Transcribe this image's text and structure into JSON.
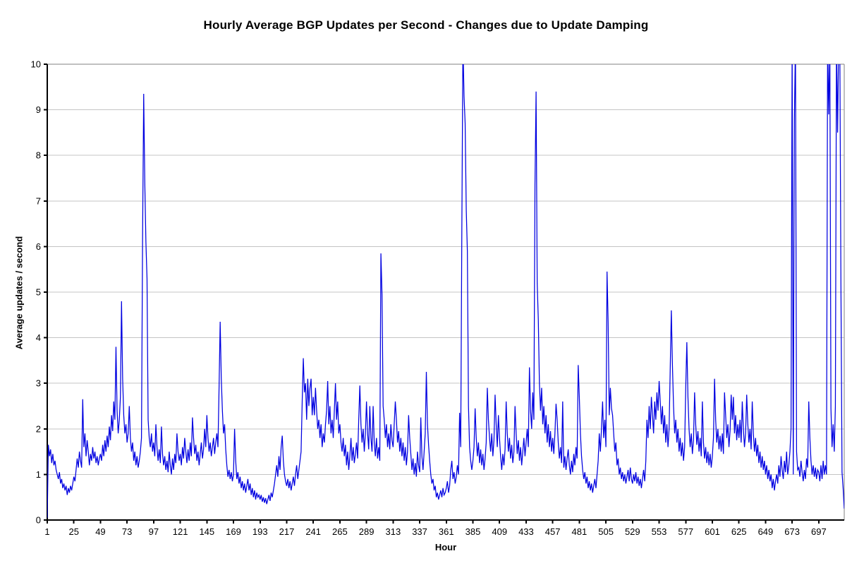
{
  "chart_data": {
    "type": "line",
    "title": "Hourly Average BGP Updates per Second - Changes due to Update Damping",
    "xlabel": "Hour",
    "ylabel": "Average updates / second",
    "xlim": [
      1,
      720
    ],
    "ylim": [
      0,
      10
    ],
    "grid": "horizontal",
    "legend": "none",
    "x_ticks": [
      1,
      25,
      49,
      73,
      97,
      121,
      145,
      169,
      193,
      217,
      241,
      265,
      289,
      313,
      337,
      361,
      385,
      409,
      433,
      457,
      481,
      505,
      529,
      553,
      577,
      601,
      625,
      649,
      673,
      697
    ],
    "y_ticks": [
      0,
      1,
      2,
      3,
      4,
      5,
      6,
      7,
      8,
      9,
      10
    ],
    "line_color": "#0000E0",
    "grid_color": "#C4C4C4",
    "plot_border_color": "#808080",
    "axis_color": "#000000",
    "values_above_ymax_are_clipped": true,
    "series": [
      {
        "name": "Hourly average BGP updates per second",
        "x_start_hour": 1,
        "x_step_hours": 1,
        "values": [
          0.05,
          1.65,
          1.4,
          1.55,
          1.25,
          1.45,
          1.2,
          1.3,
          1.1,
          1.0,
          0.9,
          1.05,
          0.8,
          0.9,
          0.7,
          0.8,
          0.65,
          0.75,
          0.55,
          0.7,
          0.6,
          0.75,
          0.65,
          0.8,
          0.95,
          0.85,
          1.1,
          1.35,
          1.15,
          1.5,
          1.3,
          1.15,
          2.65,
          1.6,
          1.9,
          1.4,
          1.75,
          1.5,
          1.2,
          1.45,
          1.3,
          1.6,
          1.35,
          1.5,
          1.25,
          1.4,
          1.2,
          1.35,
          1.45,
          1.3,
          1.65,
          1.4,
          1.75,
          1.5,
          1.85,
          1.6,
          2.05,
          1.75,
          2.3,
          1.95,
          2.6,
          2.2,
          3.8,
          2.4,
          1.9,
          2.2,
          2.7,
          4.8,
          3.1,
          2.3,
          1.9,
          2.1,
          1.7,
          1.9,
          2.5,
          1.8,
          1.5,
          1.7,
          1.3,
          1.5,
          1.2,
          1.4,
          1.15,
          1.3,
          1.5,
          1.8,
          6.2,
          9.35,
          7.4,
          6.1,
          5.3,
          2.2,
          1.8,
          1.6,
          1.9,
          1.5,
          1.7,
          1.4,
          2.1,
          1.6,
          1.3,
          1.55,
          1.25,
          2.05,
          1.45,
          1.2,
          1.4,
          1.1,
          1.3,
          1.05,
          1.5,
          1.2,
          1.0,
          1.35,
          1.1,
          1.45,
          1.25,
          1.9,
          1.5,
          1.3,
          1.45,
          1.2,
          1.6,
          1.35,
          1.8,
          1.5,
          1.25,
          1.55,
          1.3,
          1.7,
          1.4,
          2.25,
          1.8,
          1.45,
          1.65,
          1.3,
          1.5,
          1.2,
          1.45,
          1.7,
          1.35,
          1.55,
          2.0,
          1.6,
          2.3,
          1.8,
          1.5,
          1.7,
          1.4,
          1.6,
          1.8,
          1.45,
          1.7,
          1.9,
          1.6,
          2.9,
          4.35,
          3.1,
          2.4,
          1.9,
          2.1,
          1.55,
          1.2,
          0.95,
          1.1,
          0.9,
          1.05,
          0.85,
          1.0,
          2.0,
          1.3,
          0.9,
          1.05,
          0.8,
          0.95,
          0.7,
          0.85,
          0.65,
          0.8,
          0.6,
          0.75,
          0.9,
          0.65,
          0.8,
          0.55,
          0.7,
          0.5,
          0.65,
          0.45,
          0.6,
          0.5,
          0.55,
          0.45,
          0.55,
          0.4,
          0.5,
          0.38,
          0.48,
          0.35,
          0.45,
          0.55,
          0.42,
          0.6,
          0.5,
          0.65,
          0.8,
          1.0,
          1.2,
          0.95,
          1.4,
          1.1,
          1.6,
          1.85,
          1.3,
          1.0,
          0.85,
          0.75,
          0.9,
          0.7,
          0.85,
          0.65,
          0.8,
          0.95,
          0.75,
          1.0,
          1.2,
          0.9,
          1.1,
          1.3,
          1.5,
          2.6,
          3.55,
          2.8,
          3.0,
          2.2,
          3.1,
          2.5,
          2.9,
          3.1,
          2.3,
          2.7,
          2.3,
          2.9,
          2.4,
          2.0,
          2.2,
          1.8,
          2.1,
          1.6,
          1.9,
          1.7,
          2.1,
          2.4,
          3.05,
          2.1,
          2.5,
          1.9,
          2.2,
          1.8,
          2.4,
          3.0,
          2.2,
          2.6,
          1.9,
          2.1,
          1.7,
          1.5,
          1.8,
          1.4,
          1.65,
          1.2,
          1.5,
          1.1,
          1.4,
          1.8,
          1.3,
          1.6,
          1.25,
          1.45,
          1.7,
          1.35,
          2.2,
          2.95,
          2.1,
          1.7,
          2.0,
          1.5,
          1.9,
          2.6,
          1.9,
          1.55,
          2.5,
          1.8,
          1.5,
          2.5,
          1.7,
          1.4,
          1.8,
          1.35,
          1.6,
          1.3,
          5.85,
          4.95,
          2.5,
          2.2,
          1.8,
          2.1,
          1.6,
          1.9,
          1.55,
          2.1,
          1.75,
          1.6,
          2.1,
          2.6,
          2.2,
          1.7,
          1.95,
          1.5,
          1.8,
          1.4,
          1.7,
          1.3,
          1.6,
          1.2,
          1.5,
          2.3,
          1.8,
          1.45,
          1.1,
          1.35,
          1.0,
          1.25,
          0.95,
          1.5,
          1.2,
          1.05,
          2.25,
          1.4,
          1.1,
          1.5,
          1.9,
          3.25,
          2.1,
          1.65,
          1.3,
          1.0,
          0.8,
          0.9,
          0.65,
          0.75,
          0.5,
          0.6,
          0.45,
          0.55,
          0.65,
          0.5,
          0.7,
          0.55,
          0.6,
          0.7,
          0.85,
          0.6,
          0.75,
          1.1,
          1.3,
          0.9,
          1.05,
          0.8,
          0.95,
          1.2,
          1.0,
          2.35,
          1.6,
          6.3,
          10.5,
          9.3,
          8.7,
          6.8,
          5.9,
          2.5,
          1.6,
          1.3,
          1.1,
          1.3,
          1.6,
          2.45,
          1.8,
          1.4,
          1.7,
          1.25,
          1.55,
          1.2,
          1.45,
          1.1,
          1.35,
          1.7,
          2.9,
          2.2,
          1.8,
          1.5,
          1.9,
          1.4,
          1.75,
          2.75,
          2.1,
          1.6,
          2.3,
          1.8,
          1.4,
          1.1,
          1.45,
          1.2,
          1.55,
          2.6,
          1.9,
          1.5,
          1.8,
          1.35,
          1.65,
          1.25,
          1.5,
          2.5,
          1.9,
          1.45,
          1.75,
          1.3,
          1.6,
          1.2,
          1.5,
          1.8,
          1.4,
          1.7,
          2.0,
          1.6,
          3.35,
          2.4,
          2.0,
          2.8,
          2.2,
          7.35,
          9.4,
          5.2,
          4.4,
          3.0,
          2.4,
          2.9,
          2.1,
          2.5,
          1.9,
          2.3,
          1.7,
          2.1,
          1.6,
          1.95,
          1.5,
          1.8,
          1.45,
          1.9,
          2.55,
          2.2,
          1.7,
          1.35,
          1.6,
          1.25,
          2.6,
          1.15,
          1.4,
          1.1,
          1.35,
          1.55,
          1.2,
          1.0,
          1.3,
          1.05,
          1.45,
          1.2,
          1.6,
          1.35,
          3.4,
          2.7,
          1.9,
          1.4,
          1.1,
          0.9,
          1.05,
          0.8,
          0.95,
          0.7,
          0.85,
          0.65,
          0.8,
          0.6,
          0.75,
          0.9,
          0.7,
          1.0,
          1.3,
          1.9,
          1.5,
          2.0,
          2.6,
          1.8,
          2.2,
          1.6,
          5.45,
          4.35,
          2.3,
          2.9,
          2.45,
          2.3,
          1.9,
          1.5,
          1.7,
          1.2,
          1.35,
          1.0,
          1.15,
          0.9,
          1.05,
          0.85,
          1.0,
          0.8,
          0.95,
          1.1,
          0.85,
          1.15,
          0.9,
          0.8,
          1.0,
          0.85,
          1.05,
          0.8,
          0.95,
          0.75,
          0.9,
          0.7,
          0.9,
          1.1,
          0.85,
          1.3,
          2.2,
          1.8,
          2.5,
          2.0,
          2.7,
          2.3,
          1.9,
          2.6,
          2.2,
          2.8,
          2.4,
          3.05,
          2.6,
          2.1,
          2.5,
          1.9,
          2.3,
          1.7,
          2.1,
          1.6,
          2.0,
          3.3,
          4.6,
          3.4,
          2.5,
          1.9,
          2.2,
          1.7,
          2.0,
          1.5,
          1.8,
          1.4,
          1.7,
          1.3,
          1.6,
          2.9,
          3.9,
          2.7,
          2.0,
          1.6,
          1.9,
          1.45,
          1.75,
          2.8,
          2.1,
          1.65,
          1.95,
          1.5,
          1.8,
          1.4,
          2.6,
          1.7,
          1.35,
          1.6,
          1.25,
          1.5,
          1.2,
          1.45,
          1.15,
          1.4,
          1.8,
          3.1,
          2.2,
          1.7,
          2.0,
          1.55,
          1.85,
          1.5,
          1.9,
          1.45,
          2.8,
          2.3,
          1.8,
          2.1,
          1.6,
          1.95,
          2.75,
          2.2,
          2.7,
          1.9,
          2.3,
          1.75,
          2.1,
          1.8,
          2.2,
          1.7,
          2.6,
          2.0,
          1.6,
          1.9,
          2.75,
          2.1,
          1.7,
          2.0,
          1.55,
          2.6,
          1.9,
          1.5,
          1.8,
          1.4,
          1.65,
          1.25,
          1.5,
          1.15,
          1.4,
          1.1,
          1.3,
          1.0,
          1.2,
          0.9,
          1.1,
          0.85,
          1.0,
          0.7,
          0.9,
          0.65,
          0.85,
          1.0,
          0.8,
          1.2,
          0.95,
          1.4,
          1.1,
          0.9,
          1.3,
          1.05,
          1.5,
          1.0,
          1.2,
          1.5,
          2.0,
          10.5,
          1.0,
          8.8,
          10.5,
          1.5,
          1.1,
          1.15,
          0.95,
          1.3,
          1.05,
          0.85,
          1.1,
          0.9,
          1.35,
          1.15,
          2.6,
          1.8,
          1.3,
          1.0,
          1.2,
          0.95,
          1.15,
          0.9,
          1.1,
          1.05,
          0.85,
          1.2,
          0.9,
          1.3,
          1.0,
          1.2,
          1.0,
          10.5,
          8.9,
          10.5,
          2.45,
          1.6,
          2.1,
          1.5,
          2.5,
          10.5,
          8.5,
          10.5,
          10.5,
          5.2,
          1.05,
          0.7,
          0.25
        ]
      }
    ]
  }
}
